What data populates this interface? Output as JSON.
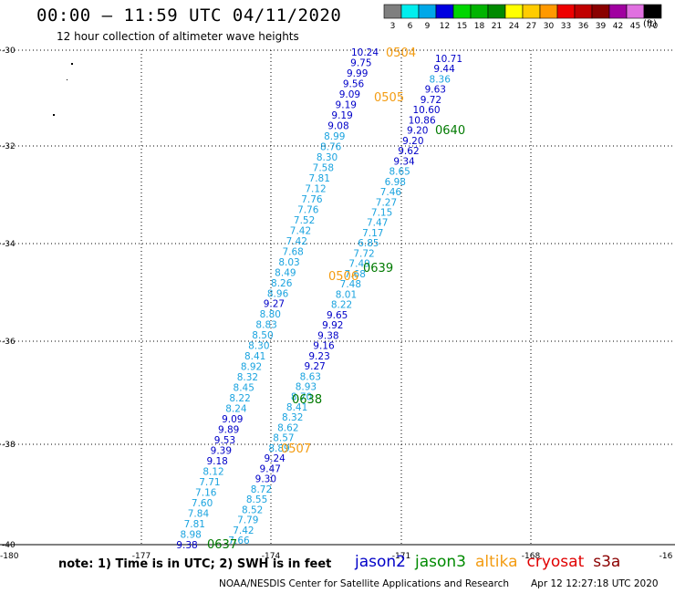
{
  "header": {
    "title": "00:00 – 11:59 UTC 04/11/2020",
    "subtitle": "12 hour collection of altimeter wave heights"
  },
  "color_scale": {
    "units": "(ft)",
    "bins": [
      {
        "label": "3",
        "color": "#7f7f7f"
      },
      {
        "label": "6",
        "color": "#00eeee"
      },
      {
        "label": "9",
        "color": "#00a8e8"
      },
      {
        "label": "12",
        "color": "#0000e0"
      },
      {
        "label": "15",
        "color": "#00d600"
      },
      {
        "label": "18",
        "color": "#00b400"
      },
      {
        "label": "21",
        "color": "#008a00"
      },
      {
        "label": "24",
        "color": "#ffff00"
      },
      {
        "label": "27",
        "color": "#ffcc00"
      },
      {
        "label": "30",
        "color": "#ff9900"
      },
      {
        "label": "33",
        "color": "#ee0000"
      },
      {
        "label": "36",
        "color": "#c00000"
      },
      {
        "label": "39",
        "color": "#8a0000"
      },
      {
        "label": "42",
        "color": "#a000a0"
      },
      {
        "label": "45",
        "color": "#e070e0"
      },
      {
        "label": "70",
        "color": "#000000"
      }
    ]
  },
  "axes": {
    "lon_labels": [
      "-180",
      "-177",
      "-174",
      "-171",
      "-168",
      "-16"
    ],
    "lat_labels": [
      "-30",
      "-32",
      "-34",
      "-36",
      "-38",
      "-40"
    ]
  },
  "pass_labels": [
    {
      "text": "0504",
      "color": "#f39c12"
    },
    {
      "text": "0505",
      "color": "#f39c12"
    },
    {
      "text": "0640",
      "color": "#007a00"
    },
    {
      "text": "0639",
      "color": "#007a00"
    },
    {
      "text": "0506",
      "color": "#f39c12"
    },
    {
      "text": "0638",
      "color": "#007a00"
    },
    {
      "text": "0507",
      "color": "#f39c12"
    },
    {
      "text": "0637",
      "color": "#007a00"
    }
  ],
  "tracks": [
    {
      "name": "jason2-a",
      "values": [
        {
          "v": "10.24",
          "c": "#0000c8"
        },
        {
          "v": "9.75",
          "c": "#0000c8"
        },
        {
          "v": "9.99",
          "c": "#0000c8"
        },
        {
          "v": "9.56",
          "c": "#0000c8"
        },
        {
          "v": "9.09",
          "c": "#0000c8"
        },
        {
          "v": "9.19",
          "c": "#0000c8"
        },
        {
          "v": "9.19",
          "c": "#0000c8"
        },
        {
          "v": "9.08",
          "c": "#0000c8"
        },
        {
          "v": "8.99",
          "c": "#1aa3df"
        },
        {
          "v": "8.76",
          "c": "#1aa3df"
        },
        {
          "v": "8.30",
          "c": "#1aa3df"
        },
        {
          "v": "7.58",
          "c": "#1aa3df"
        },
        {
          "v": "7.81",
          "c": "#1aa3df"
        },
        {
          "v": "7.12",
          "c": "#1aa3df"
        },
        {
          "v": "7.76",
          "c": "#1aa3df"
        },
        {
          "v": "7.76",
          "c": "#1aa3df"
        },
        {
          "v": "7.52",
          "c": "#1aa3df"
        },
        {
          "v": "7.42",
          "c": "#1aa3df"
        },
        {
          "v": "7.42",
          "c": "#1aa3df"
        },
        {
          "v": "7.68",
          "c": "#1aa3df"
        },
        {
          "v": "8.03",
          "c": "#1aa3df"
        },
        {
          "v": "8.49",
          "c": "#1aa3df"
        },
        {
          "v": "8.26",
          "c": "#1aa3df"
        },
        {
          "v": "8.96",
          "c": "#1aa3df"
        },
        {
          "v": "9.27",
          "c": "#0000c8"
        },
        {
          "v": "8.80",
          "c": "#1aa3df"
        },
        {
          "v": "8.83",
          "c": "#1aa3df"
        },
        {
          "v": "8.50",
          "c": "#1aa3df"
        },
        {
          "v": "8.30",
          "c": "#1aa3df"
        },
        {
          "v": "8.41",
          "c": "#1aa3df"
        },
        {
          "v": "8.92",
          "c": "#1aa3df"
        },
        {
          "v": "8.32",
          "c": "#1aa3df"
        },
        {
          "v": "8.45",
          "c": "#1aa3df"
        },
        {
          "v": "8.22",
          "c": "#1aa3df"
        },
        {
          "v": "8.24",
          "c": "#1aa3df"
        },
        {
          "v": "9.09",
          "c": "#0000c8"
        },
        {
          "v": "9.89",
          "c": "#0000c8"
        },
        {
          "v": "9.53",
          "c": "#0000c8"
        },
        {
          "v": "9.39",
          "c": "#0000c8"
        },
        {
          "v": "9.18",
          "c": "#0000c8"
        },
        {
          "v": "8.12",
          "c": "#1aa3df"
        },
        {
          "v": "7.71",
          "c": "#1aa3df"
        },
        {
          "v": "7.16",
          "c": "#1aa3df"
        },
        {
          "v": "7.60",
          "c": "#1aa3df"
        },
        {
          "v": "7.84",
          "c": "#1aa3df"
        },
        {
          "v": "7.81",
          "c": "#1aa3df"
        },
        {
          "v": "8.98",
          "c": "#1aa3df"
        },
        {
          "v": "9.38",
          "c": "#0000c8"
        }
      ]
    },
    {
      "name": "jason2-b",
      "values": [
        {
          "v": "10.71",
          "c": "#0000c8"
        },
        {
          "v": "9.44",
          "c": "#0000c8"
        },
        {
          "v": "8.36",
          "c": "#1aa3df"
        },
        {
          "v": "9.63",
          "c": "#0000c8"
        },
        {
          "v": "9.72",
          "c": "#0000c8"
        },
        {
          "v": "10.60",
          "c": "#0000c8"
        },
        {
          "v": "10.86",
          "c": "#0000c8"
        },
        {
          "v": "9.20",
          "c": "#0000c8"
        },
        {
          "v": "9.20",
          "c": "#0000c8"
        },
        {
          "v": "9.62",
          "c": "#0000c8"
        },
        {
          "v": "9.34",
          "c": "#0000c8"
        },
        {
          "v": "8.65",
          "c": "#1aa3df"
        },
        {
          "v": "6.98",
          "c": "#1aa3df"
        },
        {
          "v": "7.46",
          "c": "#1aa3df"
        },
        {
          "v": "7.27",
          "c": "#1aa3df"
        },
        {
          "v": "7.15",
          "c": "#1aa3df"
        },
        {
          "v": "7.47",
          "c": "#1aa3df"
        },
        {
          "v": "7.17",
          "c": "#1aa3df"
        },
        {
          "v": "6.85",
          "c": "#1aa3df"
        },
        {
          "v": "7.72",
          "c": "#1aa3df"
        },
        {
          "v": "7.49",
          "c": "#1aa3df"
        },
        {
          "v": "7.68",
          "c": "#1aa3df"
        },
        {
          "v": "7.48",
          "c": "#1aa3df"
        },
        {
          "v": "8.01",
          "c": "#1aa3df"
        },
        {
          "v": "8.22",
          "c": "#1aa3df"
        },
        {
          "v": "9.65",
          "c": "#0000c8"
        },
        {
          "v": "9.92",
          "c": "#0000c8"
        },
        {
          "v": "9.38",
          "c": "#0000c8"
        },
        {
          "v": "9.16",
          "c": "#0000c8"
        },
        {
          "v": "9.23",
          "c": "#0000c8"
        },
        {
          "v": "9.27",
          "c": "#0000c8"
        },
        {
          "v": "8.63",
          "c": "#1aa3df"
        },
        {
          "v": "8.93",
          "c": "#1aa3df"
        },
        {
          "v": "8.70",
          "c": "#1aa3df"
        },
        {
          "v": "8.41",
          "c": "#1aa3df"
        },
        {
          "v": "8.32",
          "c": "#1aa3df"
        },
        {
          "v": "8.62",
          "c": "#1aa3df"
        },
        {
          "v": "8.57",
          "c": "#1aa3df"
        },
        {
          "v": "8.89",
          "c": "#1aa3df"
        },
        {
          "v": "9.24",
          "c": "#0000c8"
        },
        {
          "v": "9.47",
          "c": "#0000c8"
        },
        {
          "v": "9.30",
          "c": "#0000c8"
        },
        {
          "v": "8.72",
          "c": "#1aa3df"
        },
        {
          "v": "8.55",
          "c": "#1aa3df"
        },
        {
          "v": "8.52",
          "c": "#1aa3df"
        },
        {
          "v": "7.79",
          "c": "#1aa3df"
        },
        {
          "v": "7.42",
          "c": "#1aa3df"
        },
        {
          "v": "7.66",
          "c": "#1aa3df"
        }
      ]
    }
  ],
  "footer": {
    "note": "note:  1) Time is in UTC;  2) SWH is in feet",
    "credit": "NOAA/NESDIS Center for Satellite Applications and Research",
    "timestamp": "Apr 12 12:27:18 UTC 2020"
  },
  "satellites": [
    {
      "name": "jason2",
      "color": "#0000c8"
    },
    {
      "name": "jason3",
      "color": "#008a00"
    },
    {
      "name": "altika",
      "color": "#f39c12"
    },
    {
      "name": "cryosat",
      "color": "#e00000"
    },
    {
      "name": "s3a",
      "color": "#8b0000"
    }
  ]
}
